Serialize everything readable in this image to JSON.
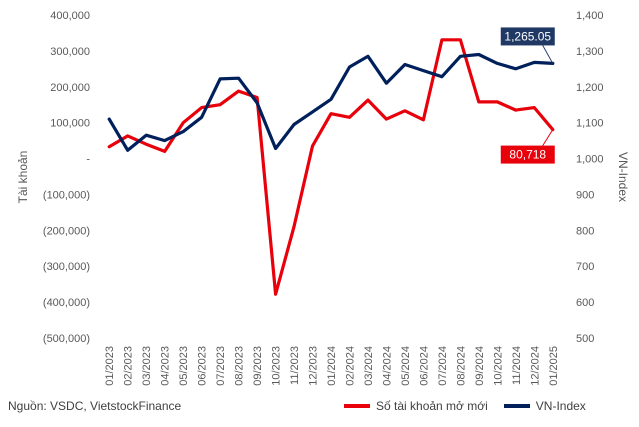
{
  "chart_data": {
    "type": "line",
    "categories": [
      "01/2023",
      "02/2023",
      "03/2023",
      "04/2023",
      "05/2023",
      "06/2023",
      "07/2023",
      "08/2023",
      "09/2023",
      "10/2023",
      "11/2023",
      "12/2023",
      "01/2024",
      "02/2024",
      "03/2024",
      "04/2024",
      "05/2024",
      "06/2024",
      "07/2024",
      "08/2024",
      "09/2024",
      "10/2024",
      "11/2024",
      "12/2024",
      "01/2025"
    ],
    "left_axis": {
      "title": "Tài khoản",
      "ylim": [
        -500000,
        400000
      ],
      "ticks": [
        400000,
        300000,
        200000,
        100000,
        0,
        -100000,
        -200000,
        -300000,
        -400000,
        -500000
      ],
      "tick_labels": [
        "400,000",
        "300,000",
        "200,000",
        "100,000",
        "-",
        "(100,000)",
        "(200,000)",
        "(300,000)",
        "(400,000)",
        "(500,000)"
      ]
    },
    "right_axis": {
      "title": "VN-Index",
      "ylim": [
        500,
        1400
      ],
      "ticks": [
        1400,
        1300,
        1200,
        1100,
        1000,
        900,
        800,
        700,
        600,
        500
      ],
      "tick_labels": [
        "1,400",
        "1,300",
        "1,200",
        "1,100",
        "1,000",
        "900",
        "800",
        "700",
        "600",
        "500"
      ]
    },
    "series": [
      {
        "name": "Số tài khoản mở mới",
        "axis": "left",
        "color": "#e8000b",
        "values": [
          33000,
          63000,
          40000,
          20000,
          100000,
          142000,
          150000,
          188000,
          170000,
          -378000,
          -190000,
          35000,
          125000,
          115000,
          163000,
          110000,
          133000,
          108000,
          331000,
          331000,
          158000,
          158000,
          135000,
          142000,
          80718
        ]
      },
      {
        "name": "VN-Index",
        "axis": "right",
        "color": "#00205b",
        "values": [
          1110,
          1023,
          1065,
          1050,
          1075,
          1115,
          1222,
          1224,
          1155,
          1028,
          1095,
          1130,
          1165,
          1255,
          1285,
          1210,
          1262,
          1245,
          1228,
          1285,
          1290,
          1265,
          1250,
          1268,
          1265.05
        ]
      }
    ],
    "annotations": [
      {
        "series": "VN-Index",
        "index": 24,
        "text": "1,265.05",
        "color": "#1f3864"
      },
      {
        "series": "Số tài khoản mở mới",
        "index": 24,
        "text": "80,718",
        "color": "#e8000b"
      }
    ],
    "grid": false
  },
  "footer": {
    "source": "Nguồn: VSDC, VietstockFinance"
  },
  "legend": {
    "items": [
      {
        "label": "Số tài khoản mở mới",
        "color": "#e8000b"
      },
      {
        "label": "VN-Index",
        "color": "#00205b"
      }
    ]
  }
}
